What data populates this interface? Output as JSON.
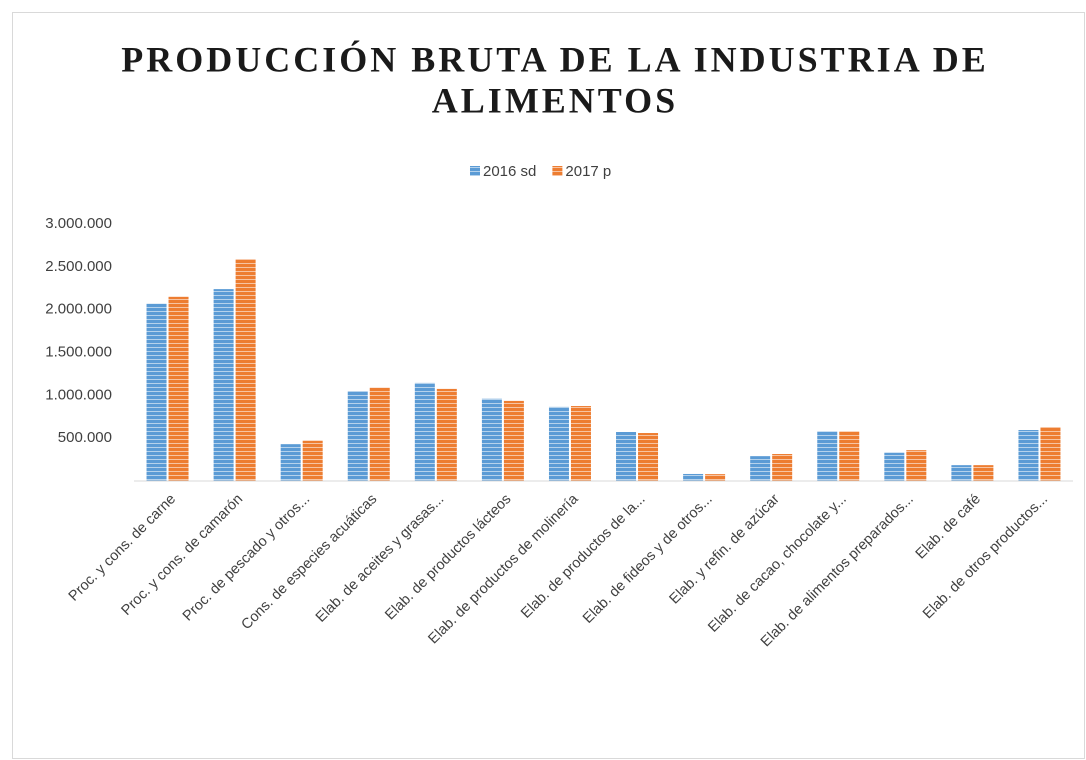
{
  "chart_data": {
    "type": "bar",
    "title": [
      "PRODUCCIÓN BRUTA DE LA INDUSTRIA DE",
      "ALIMENTOS"
    ],
    "categories": [
      "Proc. y cons. de carne",
      "Proc. y cons. de camarón",
      "Proc. de pescado y otros...",
      "Cons. de especies acuáticas",
      "Elab. de aceites y grasas...",
      "Elab. de productos lácteos",
      "Elab. de productos de molinería",
      "Elab. de productos de la...",
      "Elab. de fideos y de otros...",
      "Elab. y refin. de azúcar",
      "Elab. de cacao, chocolate y...",
      "Elab. de alimentos preparados...",
      "Elab. de café",
      "Elab. de otros productos..."
    ],
    "series": [
      {
        "name": "2016 sd",
        "color": "#5b9bd5",
        "values": [
          2070000,
          2240000,
          430000,
          1050000,
          1145000,
          960000,
          865000,
          572000,
          82000,
          290000,
          580000,
          330000,
          185000,
          595000
        ]
      },
      {
        "name": "2017 p",
        "color": "#ed7d31",
        "values": [
          2150000,
          2590000,
          470000,
          1090000,
          1075000,
          935000,
          875000,
          560000,
          80000,
          315000,
          580000,
          360000,
          185000,
          630000
        ]
      }
    ],
    "ylim": [
      0,
      3000000
    ],
    "yticks": [
      {
        "value": 500000,
        "label": "500.000"
      },
      {
        "value": 1000000,
        "label": "1.000.000"
      },
      {
        "value": 1500000,
        "label": "1.500.000"
      },
      {
        "value": 2000000,
        "label": "2.000.000"
      },
      {
        "value": 2500000,
        "label": "2.500.000"
      },
      {
        "value": 3000000,
        "label": "3.000.000"
      }
    ],
    "grid": false,
    "legend": "top"
  }
}
